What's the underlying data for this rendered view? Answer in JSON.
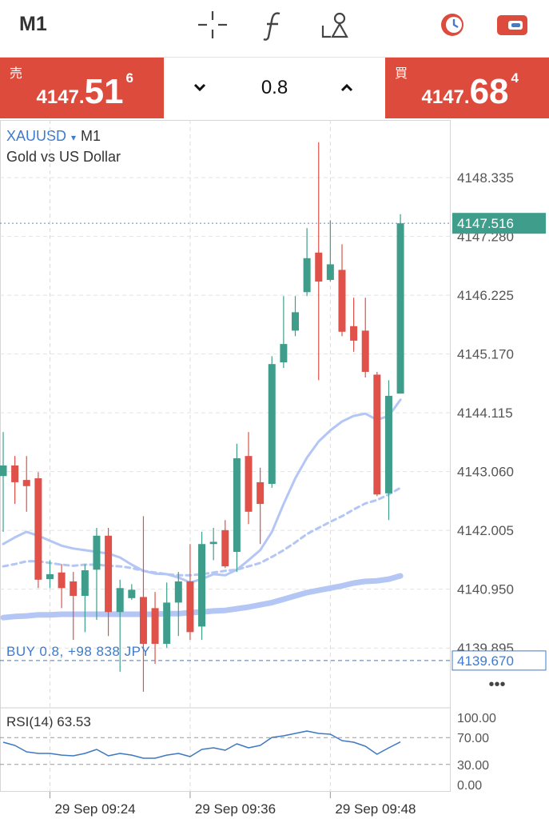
{
  "toolbar": {
    "timeframe": "M1"
  },
  "sell": {
    "label": "売",
    "price_head": "4147.",
    "price_big": "51",
    "price_sup": "6"
  },
  "lot": {
    "size": "0.8"
  },
  "buy": {
    "label": "買",
    "price_head": "4147.",
    "price_big": "68",
    "price_sup": "4"
  },
  "chart_data": [
    {
      "type": "candlestick",
      "symbol": "XAUUSD",
      "symbol_marker": "▾",
      "timeframe": "M1",
      "subtitle": "Gold vs US Dollar",
      "categories": [
        null,
        null,
        null,
        null,
        "29 Sep 09:24",
        null,
        null,
        null,
        null,
        null,
        null,
        null,
        null,
        null,
        null,
        null,
        "29 Sep 09:36",
        null,
        null,
        null,
        null,
        null,
        null,
        null,
        null,
        null,
        null,
        null,
        "29 Sep 09:48",
        null,
        null,
        null,
        null,
        null,
        null
      ],
      "open": [
        4142.98,
        4143.17,
        4142.91,
        4142.94,
        4141.13,
        4141.25,
        4141.09,
        4140.83,
        4141.3,
        4141.91,
        4140.54,
        4140.79,
        4140.81,
        4140.61,
        4139.97,
        4140.71,
        4141.09,
        4140.28,
        4141.76,
        4142.01,
        4141.62,
        4143.34,
        4142.87,
        4142.84,
        4145.02,
        4145.59,
        4146.28,
        4146.99,
        4146.5,
        4146.68,
        4145.67,
        4145.59,
        4144.8,
        4142.67,
        4144.46
      ],
      "high": [
        4143.77,
        4143.34,
        4143.34,
        4143.05,
        4141.47,
        4141.4,
        4141.26,
        4141.4,
        4142.05,
        4142.05,
        4141.12,
        4141.04,
        4142.26,
        4140.9,
        4141.07,
        4141.26,
        4141.76,
        4141.98,
        4142.05,
        4142.19,
        4143.56,
        4143.77,
        4143.13,
        4145.13,
        4146.21,
        4146.21,
        4147.43,
        4148.97,
        4147.57,
        4147.14,
        4146.18,
        4146.18,
        4144.85,
        4144.7,
        4147.68
      ],
      "low": [
        4141.98,
        4142.48,
        4142.34,
        4140.97,
        4140.97,
        4140.61,
        4140.04,
        4140.18,
        4140.4,
        4140.11,
        4139.47,
        4140.76,
        4139.11,
        4139.61,
        4139.9,
        4140.11,
        4140.04,
        4140.04,
        4141.47,
        4141.33,
        4141.26,
        4142.12,
        4141.76,
        4142.77,
        4144.92,
        4145.49,
        4146.21,
        4144.7,
        4146.47,
        4145.49,
        4145.21,
        4144.75,
        4142.62,
        4142.19,
        4144.46
      ],
      "close": [
        4143.17,
        4142.87,
        4142.8,
        4141.12,
        4141.22,
        4140.97,
        4140.83,
        4141.29,
        4141.91,
        4140.54,
        4140.97,
        4140.94,
        4139.97,
        4139.97,
        4140.71,
        4141.09,
        4140.18,
        4141.76,
        4141.8,
        4141.36,
        4143.3,
        4142.34,
        4142.48,
        4144.99,
        4145.35,
        4145.92,
        4146.89,
        4146.47,
        4146.78,
        4145.57,
        4145.41,
        4144.85,
        4142.65,
        4144.42,
        4147.516
      ],
      "up_color": "#3f9e8b",
      "down_color": "#df5149",
      "overlays": [
        {
          "style": "solid",
          "color": "#b3c6f4",
          "values": [
            4141.76,
            4141.88,
            4141.98,
            4141.91,
            4141.82,
            4141.73,
            4141.68,
            4141.65,
            4141.62,
            4141.59,
            4141.52,
            4141.39,
            4141.28,
            4141.23,
            4141.22,
            4141.16,
            4141.07,
            4141.13,
            4141.22,
            4141.2,
            4141.3,
            4141.47,
            4141.65,
            4141.98,
            4142.48,
            4142.94,
            4143.31,
            4143.6,
            4143.8,
            4143.96,
            4144.06,
            4144.1,
            4143.99,
            4144.06,
            4144.35
          ]
        },
        {
          "style": "dashed",
          "color": "#b3c6f4",
          "values": [
            4141.36,
            4141.4,
            4141.45,
            4141.45,
            4141.42,
            4141.39,
            4141.37,
            4141.39,
            4141.39,
            4141.37,
            4141.36,
            4141.33,
            4141.28,
            4141.25,
            4141.22,
            4141.2,
            4141.2,
            4141.22,
            4141.25,
            4141.28,
            4141.3,
            4141.36,
            4141.42,
            4141.53,
            4141.65,
            4141.79,
            4141.94,
            4142.05,
            4142.16,
            4142.26,
            4142.38,
            4142.49,
            4142.55,
            4142.65,
            4142.77
          ]
        },
        {
          "style": "thick",
          "color": "#b3c6f4",
          "values": [
            4140.44,
            4140.46,
            4140.47,
            4140.49,
            4140.49,
            4140.5,
            4140.5,
            4140.5,
            4140.5,
            4140.5,
            4140.5,
            4140.5,
            4140.5,
            4140.5,
            4140.51,
            4140.51,
            4140.53,
            4140.54,
            4140.56,
            4140.57,
            4140.6,
            4140.63,
            4140.67,
            4140.71,
            4140.77,
            4140.83,
            4140.89,
            4140.93,
            4140.97,
            4141.01,
            4141.06,
            4141.09,
            4141.1,
            4141.13,
            4141.19
          ]
        }
      ],
      "ylim": [
        4138.85,
        4149.37
      ],
      "yticks": [
        4148.335,
        {
          "value": 4147.28,
          "label": "4147.280"
        },
        4146.225,
        {
          "value": 4145.17,
          "label": "4145.170"
        },
        4144.115,
        {
          "value": 4143.06,
          "label": "4143.060"
        },
        4142.005,
        {
          "value": 4140.95,
          "label": "4140.950"
        },
        4139.895
      ],
      "grid": true,
      "last_price": 4147.516,
      "last_price_color": "#3f9e8b",
      "position": {
        "text": "BUY 0.8, +98 838 JPY",
        "price": {
          "value": 4139.67,
          "label": "4139.670"
        },
        "color": "#3d7bd0"
      },
      "menu": "•••"
    },
    {
      "type": "line",
      "title": "RSI(14) 63.53",
      "color": "#3f78c0",
      "values": [
        63.1,
        58.3,
        48.8,
        46.4,
        46.4,
        44.0,
        42.9,
        46.4,
        52.4,
        42.9,
        46.4,
        44.0,
        39.3,
        39.3,
        44.0,
        46.4,
        41.7,
        52.4,
        54.8,
        51.2,
        60.7,
        54.8,
        58.3,
        70.2,
        72.6,
        76.2,
        79.8,
        76.2,
        75.0,
        65.5,
        63.1,
        57.1,
        45.2,
        54.8,
        63.53
      ],
      "ylim": [
        -10.7,
        114.3
      ],
      "yticks": [
        {
          "value": 100,
          "label": "100.00"
        },
        {
          "value": 70,
          "label": "70.00"
        },
        {
          "value": 30,
          "label": "30.00"
        },
        {
          "value": 0,
          "label": "0.00"
        }
      ],
      "levels": [
        70,
        30
      ]
    }
  ]
}
